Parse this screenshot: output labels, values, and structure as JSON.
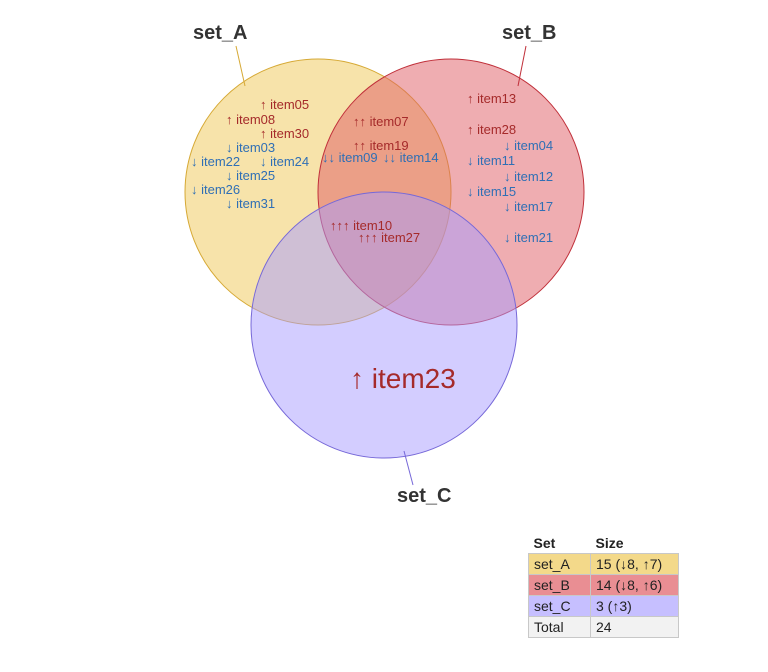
{
  "sets": [
    {
      "name": "set_A",
      "color": "#f0c855"
    },
    {
      "name": "set_B",
      "color": "#e05c64"
    },
    {
      "name": "set_C",
      "color": "#a89bff"
    }
  ],
  "regions": {
    "a_only": [
      "↑ item05",
      "↑ item08",
      "↑ item30",
      "↓ item03",
      "↓ item22",
      "↓ item24",
      "↓ item25",
      "↓ item26",
      "↓ item31"
    ],
    "ab": [
      "↑↑ item07",
      "↑↑ item19",
      "↓↓ item09",
      "↓↓ item14"
    ],
    "b_only": [
      "↑ item13",
      "↑ item28",
      "↓ item04",
      "↓ item11",
      "↓ item12",
      "↓ item15",
      "↓ item17",
      "↓ item21"
    ],
    "abc": [
      "↑↑↑ item10",
      "↑↑↑ item27"
    ],
    "c_only": [
      "↑ item23"
    ]
  },
  "table": {
    "headers": [
      "Set",
      "Size"
    ],
    "rows": [
      {
        "set": "set_A",
        "size": "15 (↓8, ↑7)",
        "color": "#f3d98a"
      },
      {
        "set": "set_B",
        "size": "14 (↓8, ↑6)",
        "color": "#e98e93"
      },
      {
        "set": "set_C",
        "size": "3 (↑3)",
        "color": "#c6bfff"
      },
      {
        "set": "Total",
        "size": "24",
        "color": "#f2f2f2"
      }
    ]
  }
}
